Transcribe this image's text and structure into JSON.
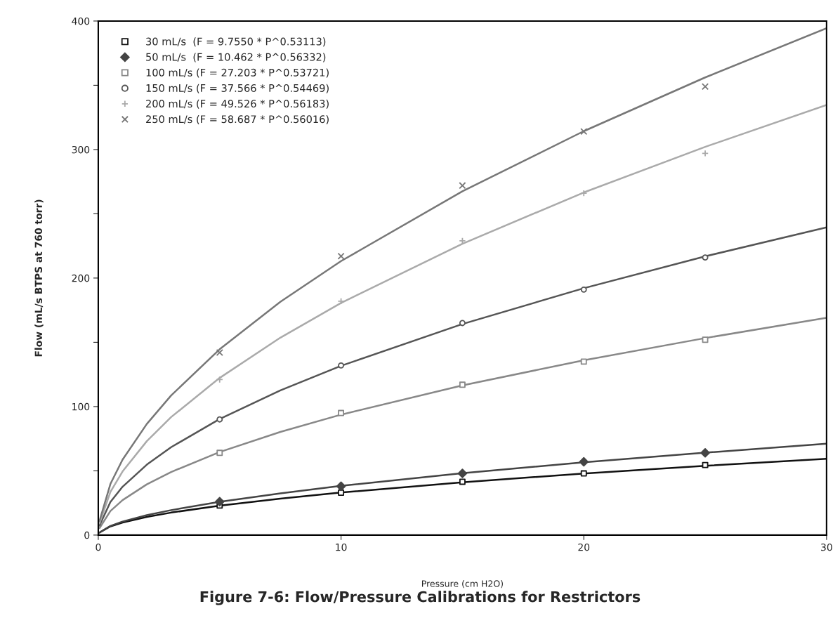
{
  "chart_data": {
    "type": "scatter",
    "title": "Figure 7-6: Flow/Pressure Calibrations for Restrictors",
    "xlabel": "Pressure (cm H2O)",
    "ylabel": "Flow (mL/s BTPS at 760 torr)",
    "xlim": [
      0,
      30
    ],
    "xticks": [
      0,
      10,
      20,
      30
    ],
    "ylim": [
      0,
      400
    ],
    "yticks": [
      0,
      {
        "value": 50,
        "label": null
      },
      100,
      {
        "value": 150,
        "label": null
      },
      200,
      {
        "value": 250,
        "label": null
      },
      300,
      {
        "value": 350,
        "label": null
      },
      400
    ],
    "grid": false,
    "legend": "top left",
    "series": [
      {
        "name": "30 mL/s  (F = 9.7550 * P^0.53113)",
        "color": "#111111",
        "marker": "square",
        "x": [
          5,
          10,
          15,
          20,
          25
        ],
        "values": [
          23,
          33,
          41.5,
          48,
          54.5
        ]
      },
      {
        "name": "50 mL/s  (F = 10.462 * P^0.56332)",
        "color": "#444444",
        "marker": "diamond",
        "x": [
          5,
          10,
          15,
          20,
          25
        ],
        "values": [
          26,
          38,
          48,
          57,
          64
        ]
      },
      {
        "name": "100 mL/s (F = 27.203 * P^0.53721)",
        "color": "#888888",
        "marker": "square",
        "x": [
          5,
          10,
          15,
          20,
          25
        ],
        "values": [
          64,
          95,
          117,
          135,
          152
        ]
      },
      {
        "name": "150 mL/s (F = 37.566 * P^0.54469)",
        "color": "#555555",
        "marker": "circle",
        "x": [
          5,
          10,
          15,
          20,
          25
        ],
        "values": [
          90,
          132,
          165,
          191,
          216
        ]
      },
      {
        "name": "200 mL/s (F = 49.526 * P^0.56183)",
        "color": "#aaaaaa",
        "marker": "plus",
        "x": [
          5,
          10,
          15,
          20,
          25
        ],
        "values": [
          121,
          182,
          229,
          266,
          297
        ]
      },
      {
        "name": "250 mL/s (F = 58.687 * P^0.56016)",
        "color": "#777777",
        "marker": "cross",
        "x": [
          5,
          10,
          15,
          20,
          25
        ],
        "values": [
          142,
          217,
          272,
          314,
          349
        ]
      },
      {
        "type": "line",
        "color": "#111111",
        "x": [
          0.05,
          0.5,
          1,
          2,
          3,
          5,
          7.5,
          10,
          15,
          20,
          25,
          30
        ],
        "values": [
          2.0,
          6.8,
          9.8,
          14.1,
          17.5,
          22.9,
          28.4,
          33.1,
          41.1,
          47.9,
          53.9,
          59.4
        ]
      },
      {
        "type": "line",
        "color": "#444444",
        "x": [
          0.05,
          0.5,
          1,
          2,
          3,
          5,
          7.5,
          10,
          15,
          20,
          25,
          30
        ],
        "values": [
          1.9,
          7.1,
          10.5,
          15.5,
          19.4,
          25.9,
          32.5,
          38.3,
          48.1,
          56.6,
          64.1,
          71.1
        ]
      },
      {
        "type": "line",
        "color": "#888888",
        "x": [
          0.05,
          0.5,
          1,
          2,
          3,
          5,
          7.5,
          10,
          15,
          20,
          25,
          30
        ],
        "values": [
          5.4,
          18.7,
          27.2,
          39.5,
          49.1,
          64.6,
          80.3,
          93.7,
          116.5,
          136.0,
          153.3,
          169.1
        ]
      },
      {
        "type": "line",
        "color": "#555555",
        "x": [
          0.05,
          0.5,
          1,
          2,
          3,
          5,
          7.5,
          10,
          15,
          20,
          25,
          30
        ],
        "values": [
          7.4,
          25.8,
          37.6,
          54.8,
          68.4,
          90.3,
          112.6,
          131.7,
          164.2,
          192.1,
          216.9,
          239.5
        ]
      },
      {
        "type": "line",
        "color": "#aaaaaa",
        "x": [
          0.05,
          0.5,
          1,
          2,
          3,
          5,
          7.5,
          10,
          15,
          20,
          25,
          30
        ],
        "values": [
          9.2,
          33.6,
          49.5,
          73.1,
          91.8,
          122.3,
          153.6,
          180.6,
          226.7,
          266.6,
          302.1,
          334.7
        ]
      },
      {
        "type": "line",
        "color": "#777777",
        "x": [
          0.05,
          0.5,
          1,
          2,
          3,
          5,
          7.5,
          10,
          15,
          20,
          25,
          30
        ],
        "values": [
          11.0,
          39.8,
          58.7,
          86.5,
          108.6,
          144.6,
          181.5,
          213.2,
          267.5,
          314.3,
          356.1,
          394.4
        ]
      }
    ]
  }
}
